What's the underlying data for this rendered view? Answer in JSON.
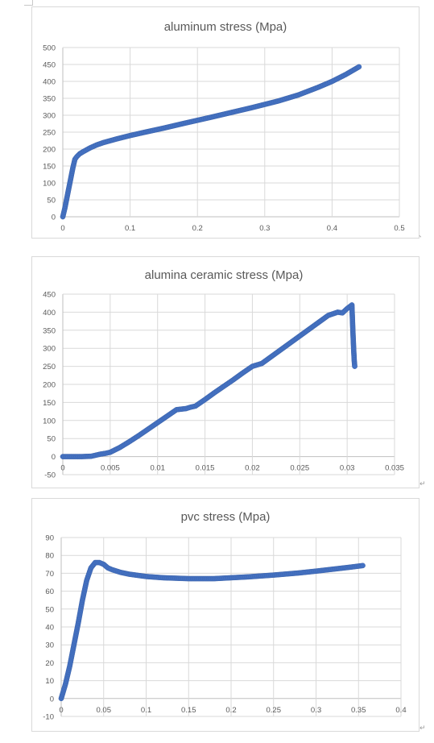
{
  "colors": {
    "series": "#4472c4",
    "grid": "#d9d9d9",
    "axis": "#bfbfbf",
    "text": "#595959",
    "frame": "#d9d9d9"
  },
  "document_marks": {
    "paragraph_mark": "↵",
    "comma_mark": "、"
  },
  "chart_data": [
    {
      "type": "scatter",
      "title": "aluminum stress (Mpa)",
      "xlim": [
        0,
        0.5
      ],
      "ylim": [
        0,
        500
      ],
      "x_ticks": [
        "0",
        "0.1",
        "0.2",
        "0.3",
        "0.4",
        "0.5"
      ],
      "y_ticks": [
        "0",
        "50",
        "100",
        "150",
        "200",
        "250",
        "300",
        "350",
        "400",
        "450",
        "500"
      ],
      "grid": true,
      "legend": "none",
      "x": [
        0,
        0.003,
        0.006,
        0.009,
        0.012,
        0.015,
        0.018,
        0.021,
        0.025,
        0.03,
        0.04,
        0.05,
        0.06,
        0.08,
        0.1,
        0.12,
        0.15,
        0.18,
        0.2,
        0.22,
        0.25,
        0.28,
        0.3,
        0.32,
        0.35,
        0.38,
        0.4,
        0.42,
        0.44
      ],
      "y": [
        0,
        25,
        55,
        85,
        115,
        145,
        170,
        178,
        186,
        192,
        203,
        212,
        219,
        230,
        240,
        249,
        262,
        276,
        285,
        294,
        308,
        322,
        332,
        342,
        360,
        383,
        400,
        420,
        443
      ]
    },
    {
      "type": "scatter",
      "title": "alumina ceramic stress (Mpa)",
      "xlim": [
        0,
        0.035
      ],
      "ylim": [
        -50,
        450
      ],
      "x_ticks": [
        "0",
        "0.005",
        "0.01",
        "0.015",
        "0.02",
        "0.025",
        "0.03",
        "0.035"
      ],
      "y_ticks": [
        "-50",
        "0",
        "50",
        "100",
        "150",
        "200",
        "250",
        "300",
        "350",
        "400",
        "450"
      ],
      "grid": true,
      "legend": "none",
      "x": [
        0,
        0.001,
        0.002,
        0.003,
        0.0035,
        0.004,
        0.0045,
        0.005,
        0.006,
        0.007,
        0.008,
        0.009,
        0.01,
        0.011,
        0.012,
        0.013,
        0.0135,
        0.014,
        0.015,
        0.016,
        0.017,
        0.018,
        0.019,
        0.02,
        0.0205,
        0.021,
        0.022,
        0.023,
        0.024,
        0.025,
        0.026,
        0.027,
        0.028,
        0.029,
        0.0295,
        0.03,
        0.0305,
        0.03055,
        0.0306,
        0.03065,
        0.0307,
        0.03075,
        0.0308
      ],
      "y": [
        0,
        0,
        0,
        1,
        4,
        7,
        9,
        12,
        25,
        41,
        58,
        76,
        94,
        112,
        130,
        133,
        137,
        140,
        158,
        177,
        195,
        213,
        232,
        250,
        254,
        258,
        277,
        296,
        315,
        334,
        353,
        372,
        391,
        400,
        398,
        410,
        420,
        385,
        350,
        320,
        290,
        265,
        250
      ]
    },
    {
      "type": "scatter",
      "title": "pvc stress (Mpa)",
      "xlim": [
        0,
        0.4
      ],
      "ylim": [
        -10,
        90
      ],
      "x_ticks": [
        "0",
        "0.05",
        "0.1",
        "0.15",
        "0.2",
        "0.25",
        "0.3",
        "0.35",
        "0.4"
      ],
      "y_ticks": [
        "-10",
        "0",
        "10",
        "20",
        "30",
        "40",
        "50",
        "60",
        "70",
        "80",
        "90"
      ],
      "grid": true,
      "legend": "none",
      "x": [
        0,
        0.005,
        0.01,
        0.015,
        0.02,
        0.025,
        0.03,
        0.035,
        0.04,
        0.045,
        0.05,
        0.055,
        0.06,
        0.07,
        0.08,
        0.1,
        0.12,
        0.15,
        0.18,
        0.2,
        0.22,
        0.25,
        0.28,
        0.3,
        0.32,
        0.34,
        0.355
      ],
      "y": [
        0,
        8,
        18,
        30,
        42,
        55,
        66,
        73,
        76,
        76,
        75,
        73,
        72,
        70.5,
        69.5,
        68.2,
        67.5,
        67,
        67,
        67.5,
        68,
        69,
        70.2,
        71.2,
        72.3,
        73.4,
        74.3
      ]
    }
  ]
}
